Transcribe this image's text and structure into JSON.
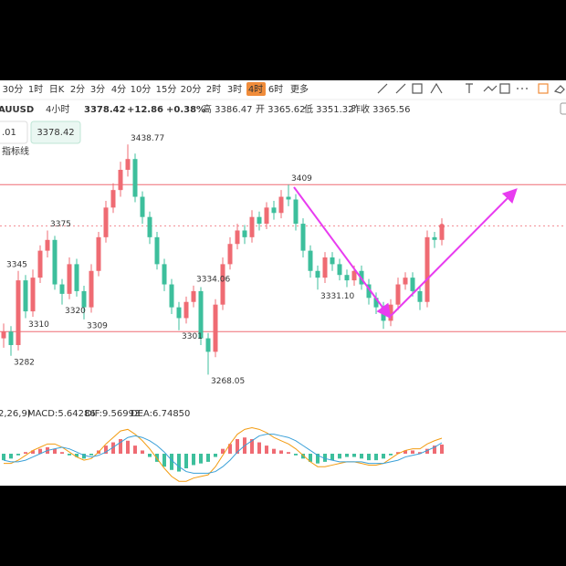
{
  "toolbar": {
    "intervals": [
      "30分",
      "1时",
      "日K",
      "2分",
      "3分",
      "4分",
      "10分",
      "15分",
      "20分",
      "2时",
      "3时",
      "4时",
      "6时"
    ],
    "active": 11,
    "more": "更多"
  },
  "quote": {
    "symbol": "AUUSD",
    "period": "4小时",
    "price": 3378.42,
    "change": "+12.86",
    "change_pct": "+0.38%",
    "high": "高 3386.47",
    "open": "开 3365.62",
    "low": "低 3351.32",
    "prev_close": "昨收 3365.56",
    "input": ".01",
    "indicator": "指标线"
  },
  "chart_data": {
    "type": "candlestick",
    "open": [
      3295,
      3300,
      3290,
      3338,
      3315,
      3340,
      3360,
      3368,
      3335,
      3328,
      3350,
      3330,
      3318,
      3345,
      3370,
      3392,
      3405,
      3420,
      3428,
      3400,
      3385,
      3370,
      3350,
      3335,
      3318,
      3310,
      3322,
      3330,
      3295,
      3285,
      3320,
      3350,
      3365,
      3375,
      3370,
      3385,
      3380,
      3392,
      3388,
      3400,
      3398,
      3380,
      3360,
      3345,
      3340,
      3355,
      3350,
      3342,
      3338,
      3345,
      3335,
      3325,
      3318,
      3308,
      3320,
      3335,
      3340,
      3330,
      3322,
      3370,
      3368
    ],
    "high": [
      3306,
      3304,
      3345,
      3342,
      3346,
      3364,
      3375,
      3371,
      3339,
      3355,
      3354,
      3334,
      3350,
      3374,
      3397,
      3410,
      3426,
      3438.77,
      3432,
      3404,
      3389,
      3374,
      3354,
      3339,
      3322,
      3326,
      3334.06,
      3333,
      3299,
      3324,
      3355,
      3370,
      3380,
      3379,
      3390,
      3389,
      3396,
      3397,
      3405,
      3409,
      3402,
      3384,
      3364,
      3349,
      3359,
      3359,
      3354,
      3346,
      3349,
      3349,
      3339,
      3329,
      3322,
      3324,
      3340,
      3344,
      3344,
      3334,
      3375,
      3374,
      3384
    ],
    "low": [
      3288,
      3282,
      3286,
      3310,
      3311,
      3336,
      3355,
      3331,
      3320,
      3324,
      3326,
      3309,
      3314,
      3341,
      3366,
      3388,
      3400,
      3415,
      3396,
      3380,
      3365,
      3346,
      3330,
      3313,
      3301,
      3306,
      3318,
      3290,
      3268.05,
      3281,
      3316,
      3346,
      3361,
      3365,
      3366,
      3375,
      3376,
      3383,
      3384,
      3393,
      3375,
      3355,
      3340,
      {
        "value": 3331.1,
        "label": "3331.10"
      },
      3336,
      3345,
      3338,
      3333,
      3334,
      3331,
      3320,
      3313,
      3302,
      3304,
      3316,
      3331,
      3326,
      3316,
      3318,
      3362,
      3364
    ],
    "close": [
      3300,
      3290,
      3338,
      3315,
      3340,
      3360,
      3368,
      3335,
      3328,
      3350,
      3330,
      3318,
      3345,
      3370,
      3392,
      3405,
      3420,
      3428,
      3400,
      3385,
      3370,
      3350,
      3335,
      3318,
      3310,
      3322,
      3330,
      3295,
      3285,
      3320,
      3350,
      3365,
      3375,
      3370,
      3385,
      3380,
      3392,
      3388,
      3400,
      3398,
      3380,
      3360,
      3345,
      3340,
      3355,
      3350,
      3342,
      3338,
      3345,
      3335,
      3325,
      3318,
      3308,
      3320,
      3335,
      3340,
      3330,
      3322,
      3370,
      3368,
      3378
    ],
    "ylim": [
      3248,
      3441
    ],
    "levels": [
      3409,
      3300
    ],
    "up_color": "#ef6b73",
    "down_color": "#3dbf9c",
    "level_color": "#ef6b73",
    "macd": {
      "title": "2,26,9)",
      "labels": [
        "MACD:5.64286",
        "DIF:9.56993",
        "DEA:6.74850"
      ],
      "label_colors": [
        "#7c6fd6",
        "#f39c12",
        "#3aa0d8"
      ],
      "hist": [
        -4,
        -3,
        -1,
        1,
        2,
        3,
        4,
        3,
        1,
        -1,
        -2,
        -3,
        -1,
        2,
        5,
        7,
        9,
        8,
        5,
        2,
        -2,
        -5,
        -8,
        -10,
        -11,
        -9,
        -7,
        -6,
        -5,
        -2,
        3,
        6,
        9,
        10,
        9,
        7,
        5,
        3,
        2,
        1,
        -1,
        -3,
        -5,
        -6,
        -5,
        -4,
        -3,
        -2,
        -2,
        -3,
        -4,
        -4,
        -3,
        -1,
        1,
        2,
        2,
        1,
        3,
        5,
        5.64
      ],
      "dif": [
        -6,
        -6,
        -4,
        -1,
        2,
        4,
        6,
        6,
        4,
        1,
        -2,
        -4,
        -3,
        1,
        6,
        10,
        14,
        15,
        12,
        8,
        3,
        -3,
        -9,
        -14,
        -17,
        -17,
        -15,
        -14,
        -13,
        -8,
        -1,
        6,
        12,
        15,
        16,
        15,
        13,
        10,
        8,
        6,
        3,
        -1,
        -5,
        -8,
        -8,
        -7,
        -6,
        -5,
        -5,
        -6,
        -7,
        -7,
        -6,
        -3,
        0,
        2,
        3,
        3,
        6,
        8,
        9.57
      ],
      "dea": [
        -4,
        -5,
        -5,
        -4,
        -2,
        0,
        2,
        3,
        4,
        3,
        1,
        -1,
        -2,
        -1,
        1,
        4,
        7,
        10,
        11,
        10,
        8,
        5,
        1,
        -4,
        -8,
        -11,
        -12,
        -12,
        -12,
        -11,
        -8,
        -4,
        1,
        5,
        8,
        11,
        12,
        12,
        11,
        10,
        8,
        5,
        2,
        -1,
        -3,
        -4,
        -5,
        -5,
        -5,
        -5,
        -6,
        -6,
        -6,
        -5,
        -4,
        -2,
        -1,
        0,
        2,
        4,
        6.75
      ],
      "ylim": [
        -18,
        18
      ]
    }
  }
}
